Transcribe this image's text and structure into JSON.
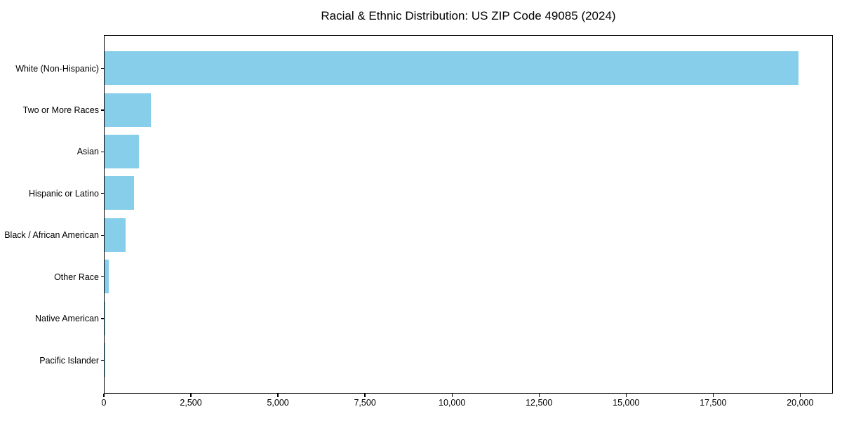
{
  "title": "Racial & Ethnic Distribution: US ZIP Code 49085 (2024)",
  "colors": {
    "bar": "#87ceeb",
    "axis": "#000000",
    "text": "#000000",
    "background": "#ffffff"
  },
  "chart_data": {
    "type": "bar",
    "orientation": "horizontal",
    "title": "Racial & Ethnic Distribution: US ZIP Code 49085 (2024)",
    "xlabel": "",
    "ylabel": "",
    "categories": [
      "White (Non-Hispanic)",
      "Two or More Races",
      "Asian",
      "Hispanic or Latino",
      "Black / African American",
      "Other Race",
      "Native American",
      "Pacific Islander"
    ],
    "values": [
      19930,
      1330,
      995,
      850,
      605,
      125,
      20,
      4
    ],
    "xlim": [
      0,
      20940
    ],
    "x_ticks": [
      0,
      2500,
      5000,
      7500,
      10000,
      12500,
      15000,
      17500,
      20000
    ],
    "x_tick_labels": [
      "0",
      "2,500",
      "5,000",
      "7,500",
      "10,000",
      "12,500",
      "15,000",
      "17,500",
      "20,000"
    ],
    "bar_color": "#87ceeb",
    "grid": false,
    "legend": false
  }
}
